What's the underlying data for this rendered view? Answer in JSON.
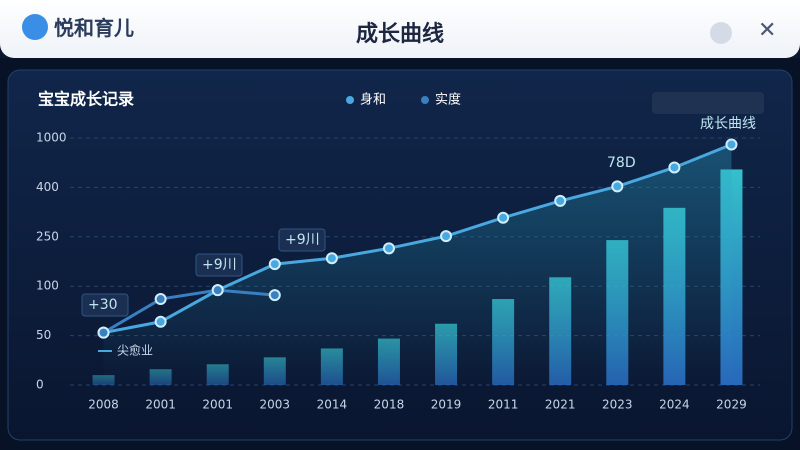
{
  "header": {
    "app_name": "悦和育儿",
    "title": "成长曲线"
  },
  "chart_data": {
    "type": "bar-line",
    "title": "宝宝成长记录",
    "categories": [
      "2008",
      "2001",
      "2001",
      "2003",
      "2014",
      "2018",
      "2019",
      "2011",
      "2021",
      "2023",
      "2024",
      "2029"
    ],
    "bar_values": [
      10,
      16,
      21,
      28,
      37,
      47,
      62,
      87,
      127,
      240,
      338,
      618
    ],
    "series": [
      {
        "name": "身和",
        "color": "#4aa8e0",
        "values": [
          53,
          64,
          96,
          167,
          185,
          215,
          252,
          308,
          359,
          412,
          642,
          921
        ]
      },
      {
        "name": "实度",
        "color": "#3a7fc0",
        "values": [
          53,
          87,
          96,
          91,
          null,
          null,
          null,
          null,
          null,
          null,
          null,
          null
        ]
      }
    ],
    "ylim": [
      0,
      1000
    ],
    "yticks": [
      0,
      50,
      100,
      250,
      400,
      1000
    ],
    "annotations": [
      "+30",
      "+9川",
      "+9川",
      "78D",
      "成长曲线",
      "尖愈业"
    ]
  }
}
